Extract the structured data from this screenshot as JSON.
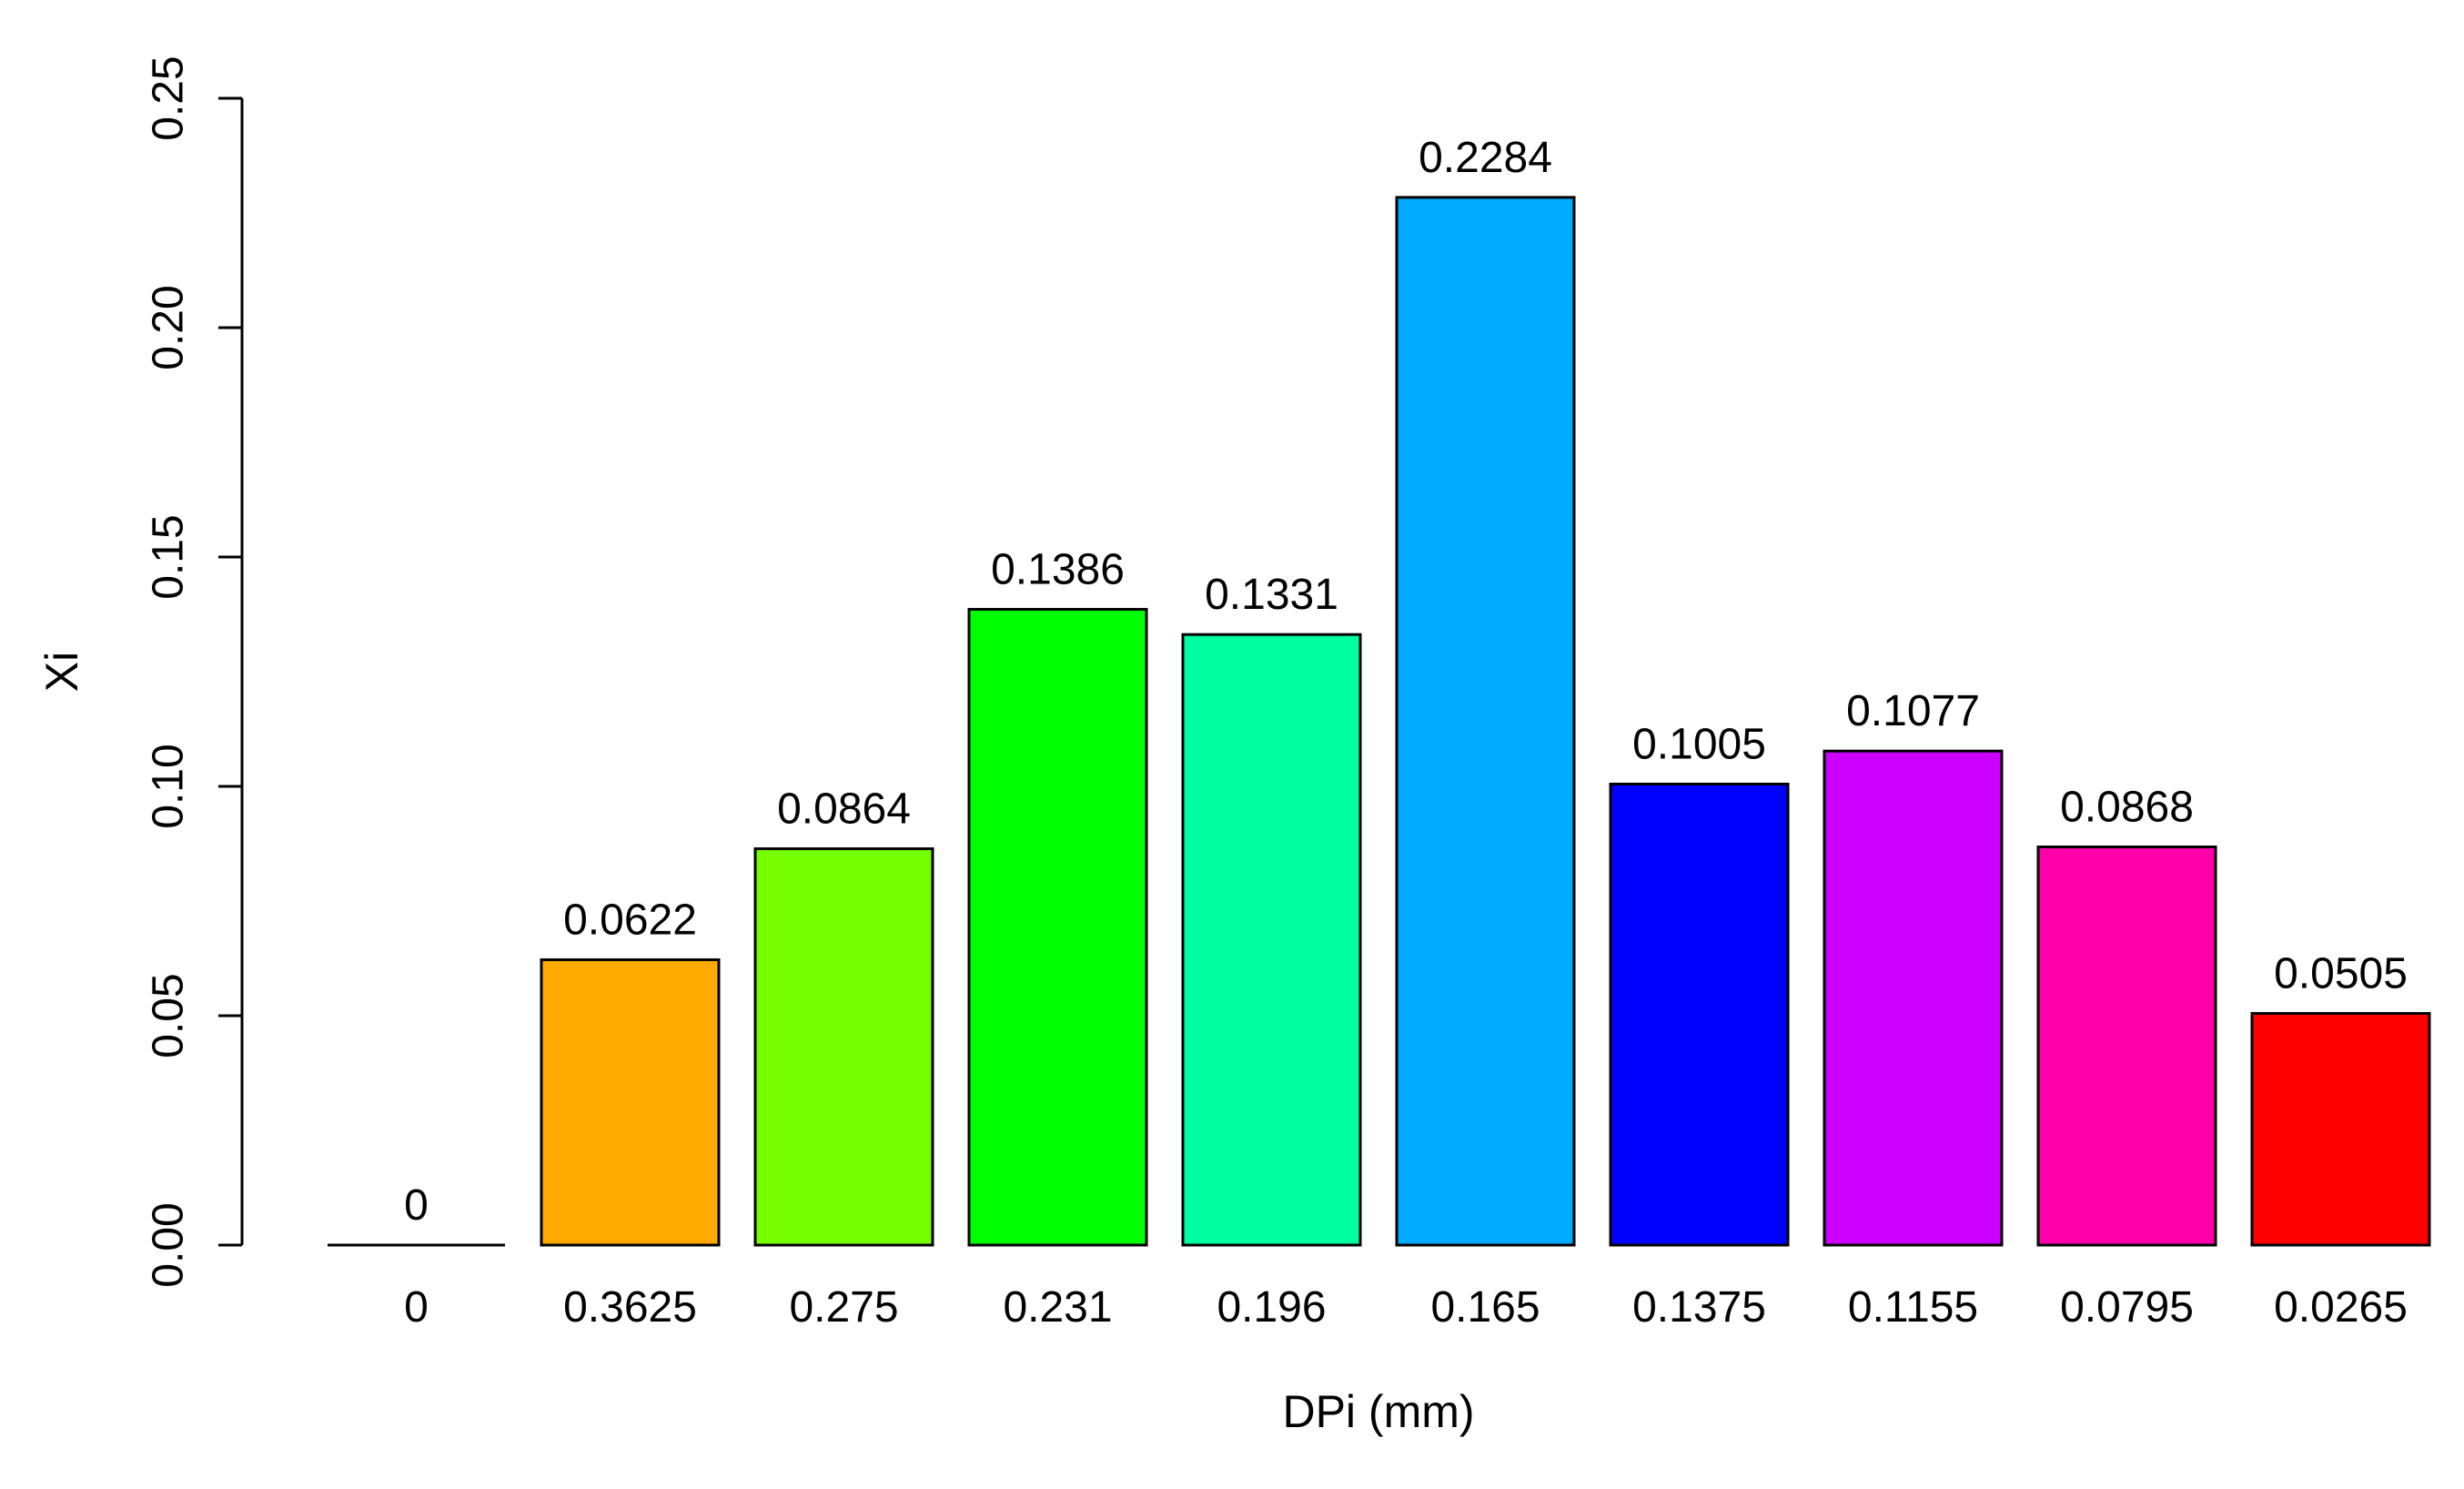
{
  "chart_data": {
    "type": "bar",
    "title": "",
    "xlabel": "DPi (mm)",
    "ylabel": "Xi",
    "categories": [
      "0",
      "0.3625",
      "0.275",
      "0.231",
      "0.196",
      "0.165",
      "0.1375",
      "0.1155",
      "0.0795",
      "0.0265"
    ],
    "values": [
      0,
      0.0622,
      0.0864,
      0.1386,
      0.1331,
      0.2284,
      0.1005,
      0.1077,
      0.0868,
      0.0505
    ],
    "value_labels": [
      "0",
      "0.0622",
      "0.0864",
      "0.1386",
      "0.1331",
      "0.2284",
      "0.1005",
      "0.1077",
      "0.0868",
      "0.0505"
    ],
    "bar_colors": [
      "#000000",
      "#FFAA00",
      "#77FF00",
      "#00FF00",
      "#00FFA0",
      "#00AAFF",
      "#0000FF",
      "#CC00FF",
      "#FF00AA",
      "#FF0000"
    ],
    "ylim": [
      0,
      0.25
    ],
    "yticks": [
      0,
      0.05,
      0.1,
      0.15,
      0.2,
      0.25
    ],
    "ytick_labels": [
      "0.00",
      "0.05",
      "0.10",
      "0.15",
      "0.20",
      "0.25"
    ],
    "grid": false,
    "legend": "none"
  }
}
